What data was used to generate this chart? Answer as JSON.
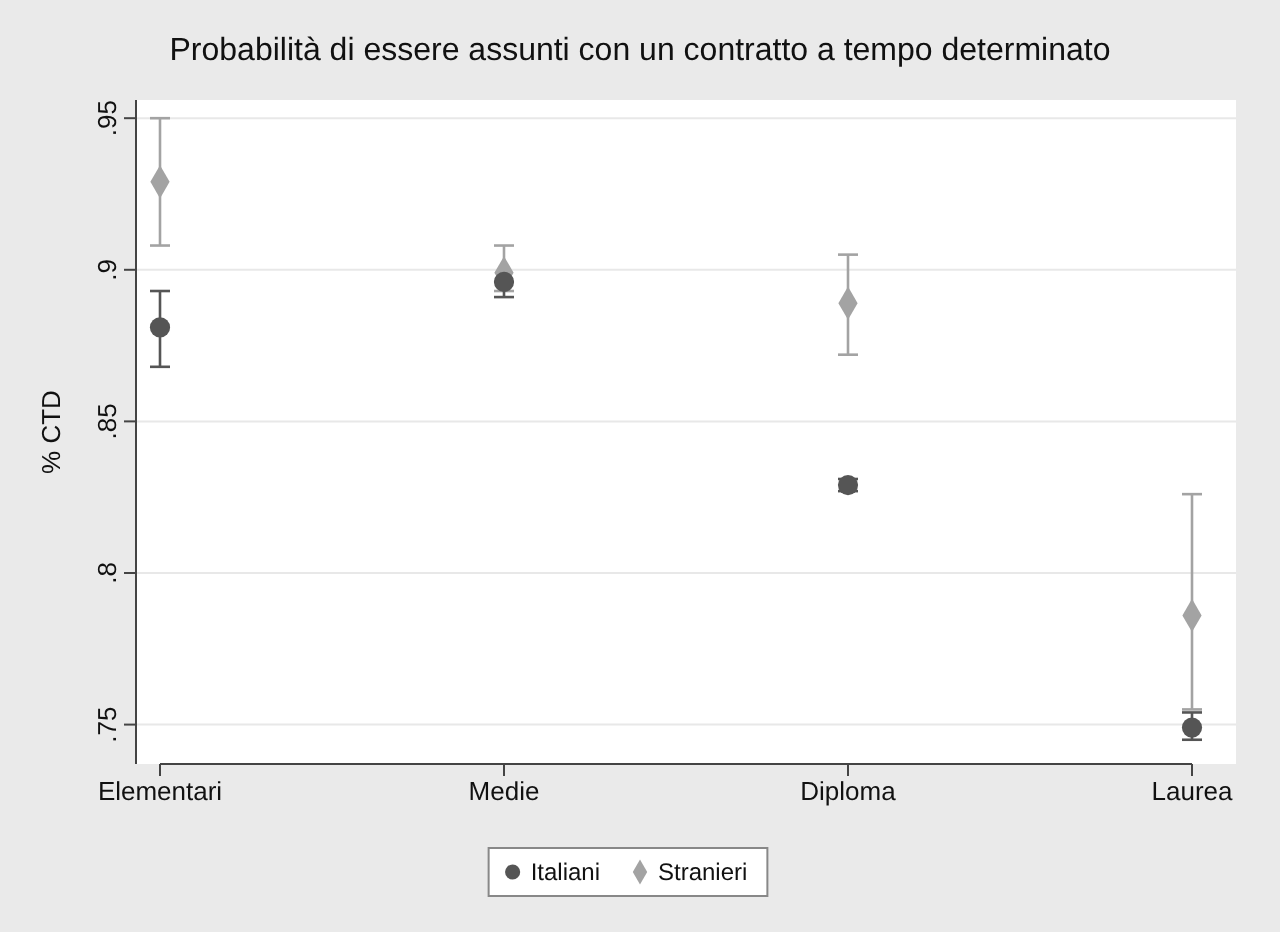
{
  "chart_data": {
    "type": "scatter",
    "title": "Probabilità di essere assunti con un contratto a tempo determinato",
    "ylabel": "% CTD",
    "categories": [
      "Elementari",
      "Medie",
      "Diploma",
      "Laurea"
    ],
    "series": [
      {
        "name": "Italiani",
        "color": "#555555",
        "marker": "circle",
        "values": [
          0.881,
          0.896,
          0.829,
          0.749
        ],
        "errors": [
          [
            0.868,
            0.893
          ],
          [
            0.891,
            0.896
          ],
          [
            0.827,
            0.831
          ],
          [
            0.745,
            0.754
          ]
        ]
      },
      {
        "name": "Stranieri",
        "color": "#a3a3a3",
        "marker": "diamond",
        "values": [
          0.929,
          0.899,
          0.889,
          0.786
        ],
        "errors": [
          [
            0.908,
            0.95
          ],
          [
            0.893,
            0.908
          ],
          [
            0.872,
            0.905
          ],
          [
            0.755,
            0.826
          ]
        ]
      }
    ],
    "ylim": [
      0.737,
      0.956
    ],
    "yticks": [
      {
        "value": 0.75,
        "label": ".75"
      },
      {
        "value": 0.8,
        "label": ".8"
      },
      {
        "value": 0.85,
        "label": ".85"
      },
      {
        "value": 0.9,
        "label": ".9"
      },
      {
        "value": 0.95,
        "label": ".95"
      }
    ],
    "grid": "y",
    "legend": "bottom"
  }
}
